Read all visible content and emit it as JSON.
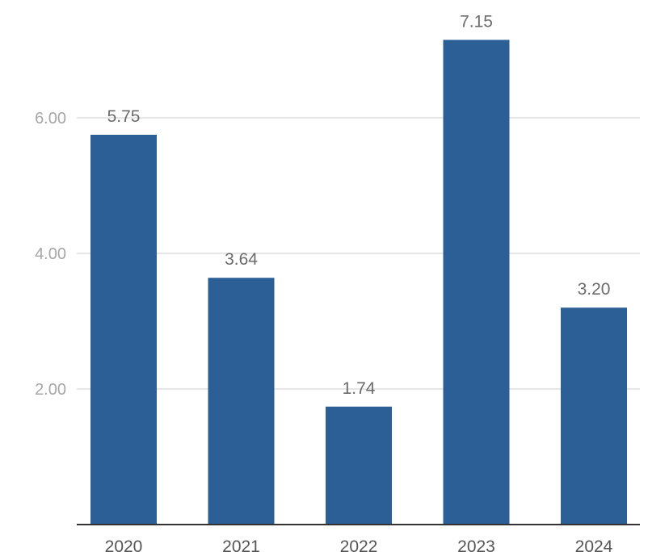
{
  "chart_data": {
    "type": "bar",
    "categories": [
      "2020",
      "2021",
      "2022",
      "2023",
      "2024"
    ],
    "values": [
      5.75,
      3.64,
      1.74,
      7.15,
      3.2
    ],
    "data_labels": [
      "5.75",
      "3.64",
      "1.74",
      "7.15",
      "3.20"
    ],
    "y_ticks": [
      {
        "value": 2,
        "label": "2.00"
      },
      {
        "value": 4,
        "label": "4.00"
      },
      {
        "value": 6,
        "label": "6.00"
      }
    ],
    "ylim": [
      0,
      7.75
    ],
    "grid": true,
    "legend": "none",
    "title": "",
    "xlabel": "",
    "ylabel": "",
    "colors": {
      "bar": "#2b5f96",
      "grid": "#e6e6e6",
      "axis": "#333333"
    }
  }
}
